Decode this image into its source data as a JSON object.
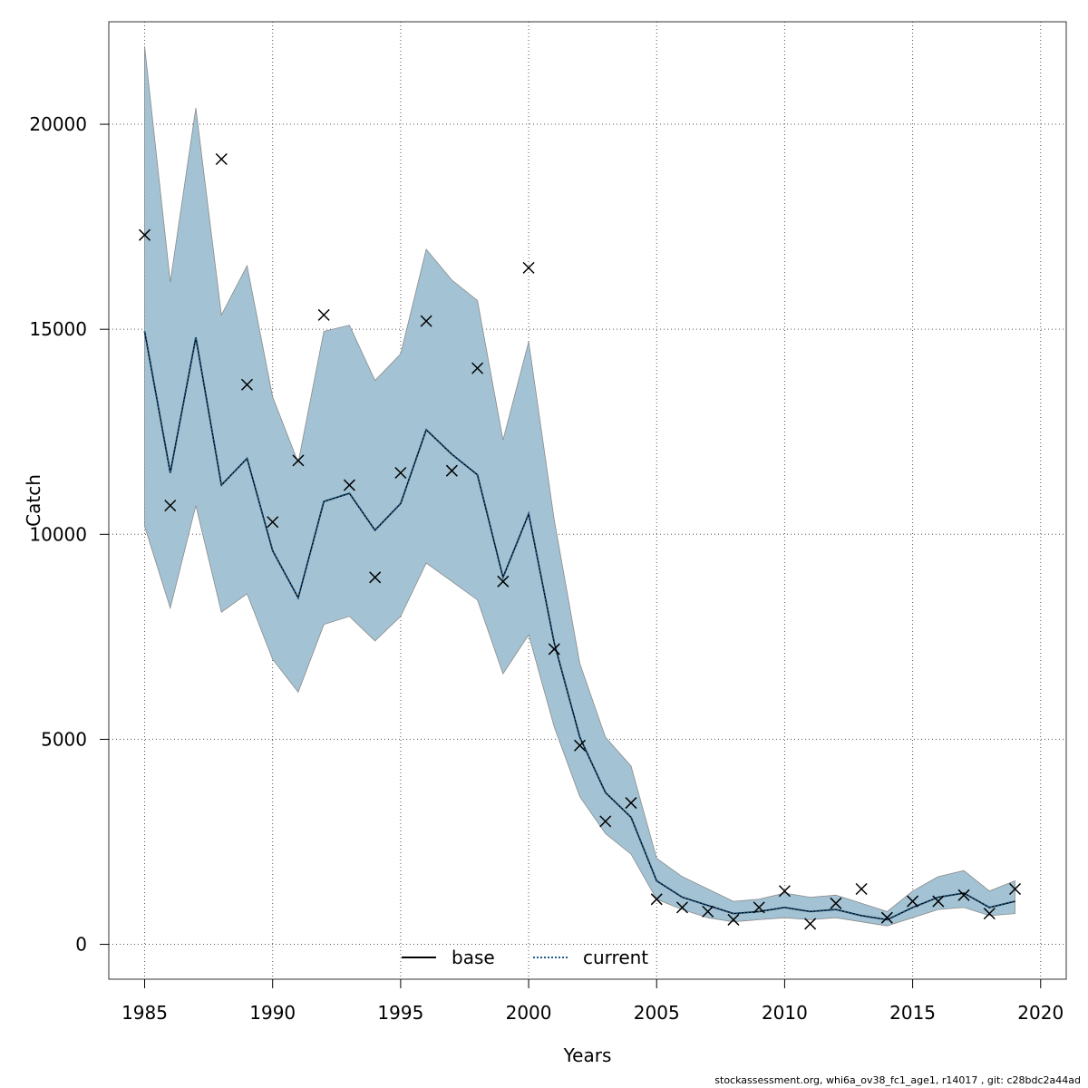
{
  "chart_data": {
    "type": "line",
    "title": "",
    "xlabel": "Years",
    "ylabel": "Catch",
    "xlim": [
      1983.6,
      2021.0
    ],
    "ylim": [
      -850,
      22500
    ],
    "x_ticks": [
      1985,
      1990,
      1995,
      2000,
      2005,
      2010,
      2015,
      2020
    ],
    "y_ticks": [
      0,
      5000,
      10000,
      15000,
      20000
    ],
    "grid": true,
    "band_color": "#a3c3d4",
    "legend_position": "bottom-center",
    "legend": [
      {
        "name": "base",
        "color": "#000000",
        "style": "solid"
      },
      {
        "name": "current",
        "color": "#1f5a8a",
        "style": "dotted"
      }
    ],
    "years": [
      1985,
      1986,
      1987,
      1988,
      1989,
      1990,
      1991,
      1992,
      1993,
      1994,
      1995,
      1996,
      1997,
      1998,
      1999,
      2000,
      2001,
      2002,
      2003,
      2004,
      2005,
      2006,
      2007,
      2008,
      2009,
      2010,
      2011,
      2012,
      2013,
      2014,
      2015,
      2016,
      2017,
      2018,
      2019
    ],
    "estimate": [
      14950,
      11500,
      14800,
      11200,
      11850,
      9600,
      8450,
      10800,
      11000,
      10100,
      10750,
      12550,
      11950,
      11450,
      8950,
      10500,
      7350,
      5050,
      3700,
      3100,
      1550,
      1150,
      950,
      750,
      800,
      900,
      800,
      850,
      700,
      600,
      900,
      1150,
      1250,
      900,
      1050
    ],
    "upper": [
      21900,
      16150,
      20400,
      15350,
      16550,
      13350,
      11750,
      14950,
      15100,
      13750,
      14400,
      16950,
      16200,
      15700,
      12300,
      14700,
      10350,
      6850,
      5050,
      4350,
      2100,
      1650,
      1350,
      1050,
      1100,
      1250,
      1150,
      1200,
      1000,
      800,
      1300,
      1650,
      1800,
      1300,
      1550
    ],
    "lower": [
      10200,
      8200,
      10700,
      8100,
      8550,
      6950,
      6150,
      7800,
      8000,
      7400,
      8000,
      9300,
      8850,
      8400,
      6600,
      7550,
      5300,
      3600,
      2700,
      2200,
      1100,
      850,
      650,
      550,
      600,
      650,
      600,
      650,
      550,
      450,
      650,
      850,
      900,
      700,
      750
    ],
    "observed": [
      17300,
      10700,
      null,
      19150,
      13650,
      10300,
      11800,
      15350,
      11200,
      8950,
      11500,
      15200,
      11550,
      14050,
      8850,
      16500,
      7200,
      4850,
      3000,
      3450,
      1100,
      900,
      800,
      600,
      900,
      1300,
      500,
      1000,
      1350,
      650,
      1050,
      1050,
      1200,
      750,
      1350
    ]
  },
  "footer": "stockassessment.org, whi6a_ov38_fc1_age1, r14017 , git: c28bdc2a44ad"
}
